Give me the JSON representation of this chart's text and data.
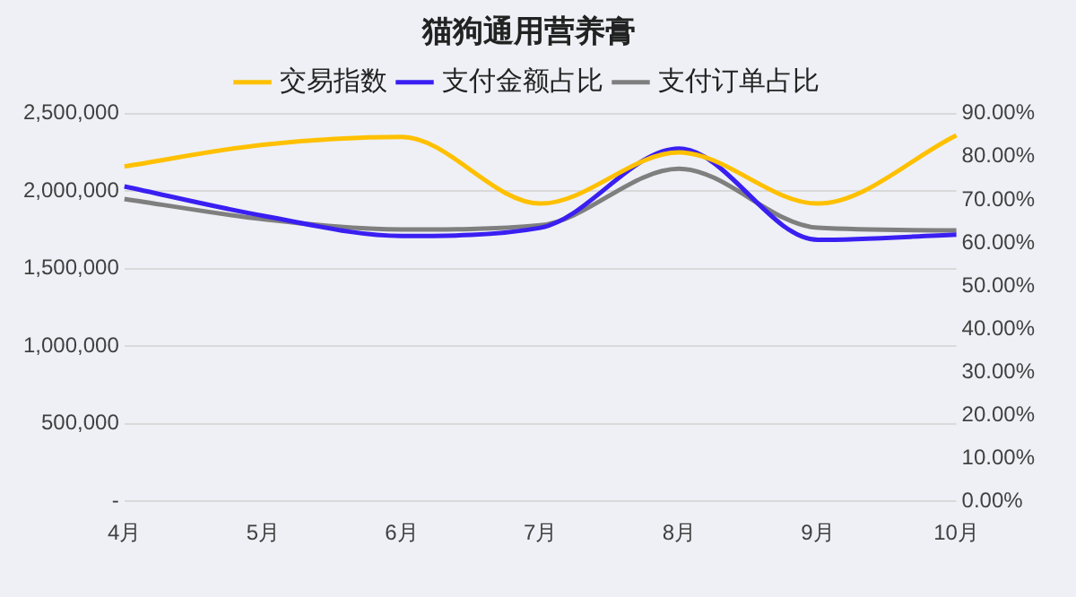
{
  "chart_data": {
    "type": "line",
    "title": "猫狗通用营养膏",
    "categories": [
      "4月",
      "5月",
      "6月",
      "7月",
      "8月",
      "9月",
      "10月"
    ],
    "series": [
      {
        "name": "交易指数",
        "color": "#ffc000",
        "values": [
          2160000,
          2300000,
          2350000,
          1920000,
          2250000,
          1920000,
          2360000
        ]
      },
      {
        "name": "支付金额占比",
        "color": "#3a1ff2",
        "axis": "y2",
        "values": [
          73.1,
          66.3,
          61.6,
          63.5,
          81.9,
          60.7,
          61.9
        ]
      },
      {
        "name": "支付订单占比",
        "color": "#7f7f7f",
        "axis": "y2",
        "values": [
          70.2,
          65.5,
          63.1,
          64.1,
          77.2,
          63.5,
          62.9
        ]
      }
    ],
    "ylim": [
      0,
      2500000
    ],
    "yticks": [
      {
        "value": 0,
        "label": "-"
      },
      {
        "value": 500000,
        "label": "500,000"
      },
      {
        "value": 1000000,
        "label": "1,000,000"
      },
      {
        "value": 1500000,
        "label": "1,500,000"
      },
      {
        "value": 2000000,
        "label": "2,000,000"
      },
      {
        "value": 2500000,
        "label": "2,500,000"
      }
    ],
    "y2lim": [
      0,
      90
    ],
    "y2ticks": [
      {
        "value": 0,
        "label": "0.00%"
      },
      {
        "value": 10,
        "label": "10.00%"
      },
      {
        "value": 20,
        "label": "20.00%"
      },
      {
        "value": 30,
        "label": "30.00%"
      },
      {
        "value": 40,
        "label": "40.00%"
      },
      {
        "value": 50,
        "label": "50.00%"
      },
      {
        "value": 60,
        "label": "60.00%"
      },
      {
        "value": 70,
        "label": "70.00%"
      },
      {
        "value": 80,
        "label": "80.00%"
      },
      {
        "value": 90,
        "label": "90.00%"
      }
    ],
    "grid": "y",
    "legend": "top",
    "marker": "none",
    "line_style": "solid"
  }
}
